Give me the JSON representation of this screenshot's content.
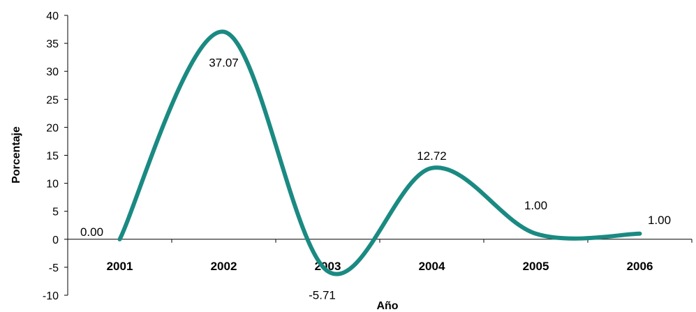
{
  "chart_data": {
    "type": "line",
    "xlabel": "Año",
    "ylabel": "Porcentaje",
    "categories": [
      "2001",
      "2002",
      "2003",
      "2004",
      "2005",
      "2006"
    ],
    "series": [
      {
        "values": [
          0.0,
          37.07,
          -5.71,
          12.72,
          1.0,
          1.0
        ],
        "labels": [
          "0.00",
          "37.07",
          "-5.71",
          "12.72",
          "1.00",
          "1.00"
        ],
        "color": "#1a8a82"
      }
    ],
    "ylim": [
      -10,
      40
    ],
    "yticks": [
      "-10",
      "-5",
      "0",
      "5",
      "10",
      "15",
      "20",
      "25",
      "30",
      "35",
      "40"
    ],
    "smooth": true,
    "grid": false,
    "legend": "none"
  }
}
